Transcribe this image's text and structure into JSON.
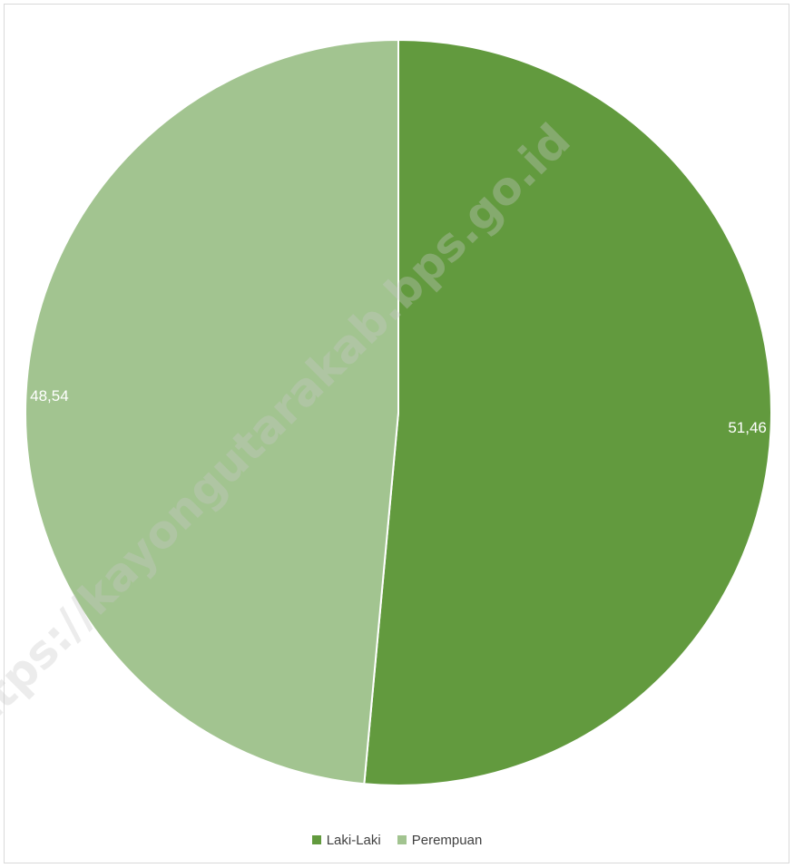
{
  "chart_data": {
    "type": "pie",
    "categories": [
      "Laki-Laki",
      "Perempuan"
    ],
    "values": [
      51.46,
      48.54
    ],
    "data_labels": [
      "51,46",
      "48,54"
    ],
    "colors": [
      "#629a3e",
      "#a2c490"
    ],
    "legend_placement": "bottom"
  },
  "legend": {
    "items": [
      {
        "label": "Laki-Laki",
        "color": "#629a3e"
      },
      {
        "label": "Perempuan",
        "color": "#a2c490"
      }
    ]
  },
  "watermark": {
    "text": "https://kayongutarakab.bps.go.id"
  }
}
